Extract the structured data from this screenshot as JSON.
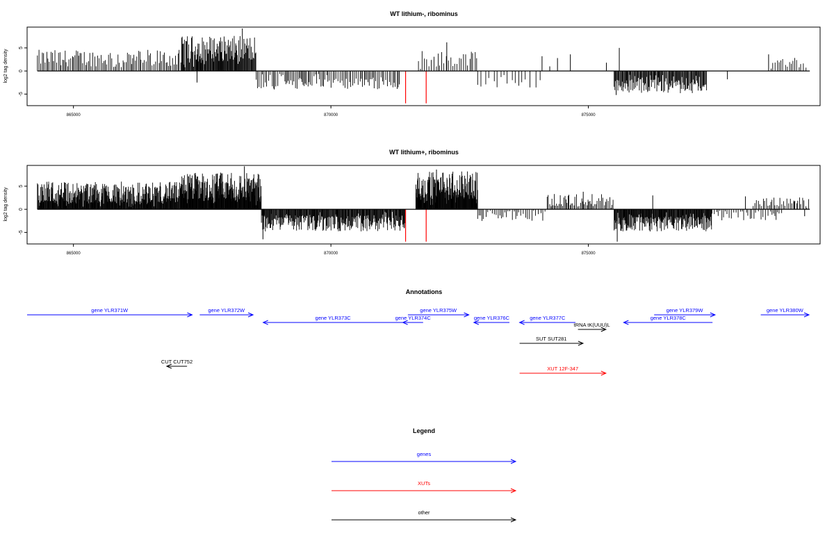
{
  "chart_data": [
    {
      "type": "bar",
      "title": "WT lithium-, ribominus",
      "ylabel": "log2 tag density",
      "xlim": [
        864100,
        879500
      ],
      "ylim": [
        -7.5,
        9.5
      ],
      "xticks": [
        865000,
        870000,
        875000
      ],
      "xtick_labels": [
        "865000",
        "870000",
        "875000"
      ],
      "yticks": [
        -5,
        0,
        5
      ],
      "ytick_labels": [
        "-5",
        "0",
        "5"
      ],
      "baseline_range": [
        864300,
        879300
      ],
      "bar_color": "#000000",
      "highlight_color": "#ff0000",
      "highlights": [
        {
          "x": 871450,
          "y": -7
        },
        {
          "x": 871850,
          "y": -7
        }
      ],
      "density_regions": [
        {
          "start": 864300,
          "end": 867100,
          "sign": 1,
          "base": 2.8,
          "vary": 1.8,
          "step": 28
        },
        {
          "start": 867100,
          "end": 868550,
          "sign": 1,
          "base": 4.8,
          "vary": 2.8,
          "step": 12
        },
        {
          "start": 868550,
          "end": 871350,
          "sign": -1,
          "base": 2.8,
          "vary": 1.2,
          "step": 30
        },
        {
          "start": 871700,
          "end": 872850,
          "sign": 1,
          "base": 2.6,
          "vary": 1.8,
          "step": 40
        },
        {
          "start": 872850,
          "end": 874100,
          "sign": -1,
          "base": 2.5,
          "vary": 1.2,
          "step": 85
        },
        {
          "start": 875500,
          "end": 877300,
          "sign": -1,
          "base": 3.3,
          "vary": 1.5,
          "step": 14
        },
        {
          "start": 878550,
          "end": 879250,
          "sign": 1,
          "base": 2.1,
          "vary": 0.8,
          "step": 40
        }
      ],
      "spikes": [
        {
          "x": 868280,
          "y": 9.2
        },
        {
          "x": 874100,
          "y": 3.2
        },
        {
          "x": 874400,
          "y": 2.8
        },
        {
          "x": 874650,
          "y": 3.6
        },
        {
          "x": 875350,
          "y": 1.8
        },
        {
          "x": 875600,
          "y": 5
        },
        {
          "x": 877700,
          "y": -1.8
        },
        {
          "x": 878500,
          "y": 3.6
        },
        {
          "x": 867400,
          "y": -2.5
        },
        {
          "x": 868900,
          "y": -4
        },
        {
          "x": 872250,
          "y": 6.2
        },
        {
          "x": 875540,
          "y": -5.2
        },
        {
          "x": 874250,
          "y": 1
        }
      ]
    },
    {
      "type": "bar",
      "title": "WT lithium+, ribominus",
      "ylabel": "log2 tag density",
      "xlim": [
        864100,
        879500
      ],
      "ylim": [
        -7.5,
        9.5
      ],
      "xticks": [
        865000,
        870000,
        875000
      ],
      "xtick_labels": [
        "865000",
        "870000",
        "875000"
      ],
      "yticks": [
        -5,
        0,
        5
      ],
      "ytick_labels": [
        "-5",
        "0",
        "5"
      ],
      "baseline_range": [
        864300,
        879300
      ],
      "bar_color": "#000000",
      "highlight_color": "#ff0000",
      "highlights": [
        {
          "x": 871450,
          "y": -7
        },
        {
          "x": 871850,
          "y": -7
        }
      ],
      "density_regions": [
        {
          "start": 864300,
          "end": 867100,
          "sign": 1,
          "base": 3.6,
          "vary": 2.4,
          "step": 9
        },
        {
          "start": 867100,
          "end": 868650,
          "sign": 1,
          "base": 4.8,
          "vary": 3.2,
          "step": 8
        },
        {
          "start": 868650,
          "end": 871450,
          "sign": -1,
          "base": 3,
          "vary": 1.8,
          "step": 11
        },
        {
          "start": 871650,
          "end": 872850,
          "sign": 1,
          "base": 5.2,
          "vary": 3,
          "step": 8
        },
        {
          "start": 872850,
          "end": 874200,
          "sign": -1,
          "base": 1.6,
          "vary": 1.2,
          "step": 40
        },
        {
          "start": 874200,
          "end": 875500,
          "sign": 1,
          "base": 2,
          "vary": 1.4,
          "step": 24
        },
        {
          "start": 875500,
          "end": 877400,
          "sign": -1,
          "base": 3.2,
          "vary": 1.6,
          "step": 10
        },
        {
          "start": 877400,
          "end": 878800,
          "sign": -1,
          "base": 1.4,
          "vary": 1,
          "step": 40
        },
        {
          "start": 878200,
          "end": 879300,
          "sign": 1,
          "base": 1.6,
          "vary": 1,
          "step": 30
        }
      ],
      "spikes": [
        {
          "x": 868320,
          "y": 9.3
        },
        {
          "x": 872050,
          "y": 8.6
        },
        {
          "x": 868680,
          "y": -6.5
        },
        {
          "x": 875560,
          "y": -7
        },
        {
          "x": 874900,
          "y": 3.8
        },
        {
          "x": 876250,
          "y": 3
        },
        {
          "x": 878050,
          "y": 2.8
        },
        {
          "x": 879200,
          "y": -1.5
        },
        {
          "x": 879000,
          "y": 1.6
        }
      ]
    }
  ],
  "annotations": {
    "title": "Annotations",
    "xlim": [
      864100,
      879500
    ],
    "features": [
      {
        "label": "gene YLR371W",
        "color": "#0000ff",
        "start": 864100,
        "end": 867350,
        "row": 0,
        "dir": "right"
      },
      {
        "label": "gene YLR372W",
        "color": "#0000ff",
        "start": 867500,
        "end": 868550,
        "row": 0,
        "dir": "right"
      },
      {
        "label": "gene YLR373C",
        "color": "#0000ff",
        "start": 868750,
        "end": 871500,
        "row": 1,
        "dir": "left"
      },
      {
        "label": "gene YLR374C",
        "color": "#0000ff",
        "start": 871500,
        "end": 871900,
        "row": 1,
        "dir": "left"
      },
      {
        "label": "gene YLR375W",
        "color": "#0000ff",
        "start": 871600,
        "end": 872800,
        "row": 0,
        "dir": "right"
      },
      {
        "label": "gene YLR376C",
        "color": "#0000ff",
        "start": 872900,
        "end": 873600,
        "row": 1,
        "dir": "left"
      },
      {
        "label": "gene YLR377C",
        "color": "#0000ff",
        "start": 873800,
        "end": 874900,
        "row": 1,
        "dir": "left"
      },
      {
        "label": "tRNA tK(UUU)L",
        "color": "#000000",
        "start": 874950,
        "end": 875500,
        "row": 2,
        "dir": "right"
      },
      {
        "label": "gene YLR378C",
        "color": "#0000ff",
        "start": 875850,
        "end": 877600,
        "row": 1,
        "dir": "left"
      },
      {
        "label": "gene YLR379W",
        "color": "#0000ff",
        "start": 876450,
        "end": 877650,
        "row": 0,
        "dir": "right"
      },
      {
        "label": "gene YLR380W",
        "color": "#0000ff",
        "start": 878550,
        "end": 879500,
        "row": 0,
        "dir": "right"
      },
      {
        "label": "SUT SUT281",
        "color": "#000000",
        "start": 873800,
        "end": 875050,
        "row": 3,
        "dir": "right"
      },
      {
        "label": "CUT CUT752",
        "color": "#000000",
        "start": 866850,
        "end": 867250,
        "row": 5,
        "dir": "left"
      },
      {
        "label": "XUT 12F-347",
        "color": "#ff0000",
        "start": 873800,
        "end": 875500,
        "row": 6,
        "dir": "right"
      }
    ]
  },
  "legend": {
    "title": "Legend",
    "entries": [
      {
        "label": "genes",
        "color": "#0000ff"
      },
      {
        "label": "XUTs",
        "color": "#ff0000"
      },
      {
        "label": "other",
        "color": "#000000"
      }
    ]
  }
}
